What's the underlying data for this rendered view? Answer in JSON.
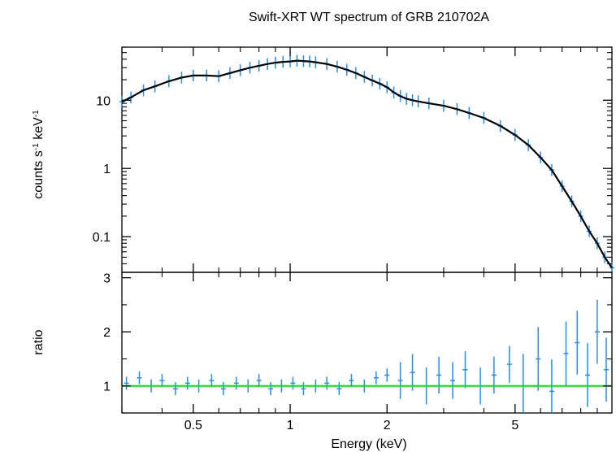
{
  "chart_data": [
    {
      "type": "line",
      "panel": "spectrum",
      "title": "Swift-XRT WT spectrum of GRB 210702A",
      "xlabel": "Energy (keV)",
      "ylabel_main": "counts s",
      "ylabel_sup1": "-1",
      "ylabel_mid": " keV",
      "ylabel_sup2": "-1",
      "x_scale": "log",
      "y_scale": "log",
      "xlim": [
        0.3,
        10
      ],
      "ylim": [
        0.03,
        60
      ],
      "yticks": [
        {
          "value": 10,
          "label": "10"
        },
        {
          "value": 1,
          "label": "1"
        },
        {
          "value": 0.1,
          "label": "0.1"
        }
      ],
      "series": [
        {
          "role": "data",
          "color": "#1e90ff",
          "x": [
            0.3,
            0.32,
            0.35,
            0.38,
            0.42,
            0.46,
            0.5,
            0.55,
            0.6,
            0.65,
            0.7,
            0.75,
            0.8,
            0.85,
            0.9,
            0.95,
            1.0,
            1.05,
            1.1,
            1.15,
            1.2,
            1.3,
            1.4,
            1.5,
            1.6,
            1.7,
            1.8,
            1.9,
            2.0,
            2.1,
            2.2,
            2.3,
            2.4,
            2.5,
            2.7,
            3.0,
            3.3,
            3.6,
            4.0,
            4.5,
            5.0,
            5.5,
            6.0,
            6.5,
            7.0,
            7.5,
            8.0,
            8.5,
            9.0,
            9.5,
            10.0
          ],
          "y": [
            9.5,
            11,
            14,
            16,
            19,
            21.5,
            23,
            23,
            22.5,
            25,
            27.5,
            30,
            32,
            34,
            35.5,
            36.5,
            37,
            38,
            37.5,
            37,
            36,
            34,
            31,
            28,
            25,
            22,
            19.5,
            17.5,
            15.5,
            13,
            11.5,
            10.5,
            10,
            9.6,
            9,
            8.3,
            7.4,
            6.5,
            5.5,
            4.2,
            3.1,
            2.2,
            1.45,
            0.95,
            0.55,
            0.33,
            0.2,
            0.12,
            0.08,
            0.05,
            0.035
          ]
        },
        {
          "role": "model",
          "color": "#000000",
          "x": [
            0.3,
            0.32,
            0.35,
            0.38,
            0.42,
            0.46,
            0.5,
            0.55,
            0.6,
            0.65,
            0.7,
            0.75,
            0.8,
            0.85,
            0.9,
            0.95,
            1.0,
            1.05,
            1.1,
            1.15,
            1.2,
            1.3,
            1.4,
            1.5,
            1.6,
            1.7,
            1.8,
            1.9,
            2.0,
            2.1,
            2.2,
            2.3,
            2.4,
            2.5,
            2.7,
            3.0,
            3.3,
            3.6,
            4.0,
            4.5,
            5.0,
            5.5,
            6.0,
            6.5,
            7.0,
            7.5,
            8.0,
            8.5,
            9.0,
            9.5,
            10.0
          ],
          "y": [
            9.5,
            11,
            14,
            16,
            19,
            21.5,
            23,
            23,
            22.5,
            25,
            27.5,
            30,
            32,
            34,
            35.5,
            36.5,
            37,
            38,
            37.5,
            37,
            36,
            34,
            31,
            28,
            25,
            22,
            19.5,
            17.5,
            15.5,
            13,
            11.5,
            10.5,
            10,
            9.6,
            9,
            8.3,
            7.4,
            6.5,
            5.5,
            4.2,
            3.1,
            2.2,
            1.45,
            0.95,
            0.55,
            0.33,
            0.2,
            0.12,
            0.08,
            0.05,
            0.035
          ]
        }
      ]
    },
    {
      "type": "scatter",
      "panel": "ratio",
      "xlabel": "Energy (keV)",
      "ylabel": "ratio",
      "x_scale": "log",
      "y_scale": "linear",
      "xlim": [
        0.3,
        10
      ],
      "ylim": [
        0.5,
        3.1
      ],
      "xticks": [
        {
          "value": 0.5,
          "label": "0.5"
        },
        {
          "value": 1,
          "label": "1"
        },
        {
          "value": 2,
          "label": "2"
        },
        {
          "value": 5,
          "label": "5"
        }
      ],
      "yticks": [
        {
          "value": 1,
          "label": "1"
        },
        {
          "value": 2,
          "label": "2"
        },
        {
          "value": 3,
          "label": "3"
        }
      ],
      "reference_line": {
        "y": 1,
        "color": "#00e600"
      },
      "series": [
        {
          "role": "ratio",
          "color": "#1e90ff",
          "x": [
            0.31,
            0.34,
            0.37,
            0.4,
            0.44,
            0.48,
            0.52,
            0.57,
            0.62,
            0.68,
            0.74,
            0.8,
            0.87,
            0.94,
            1.02,
            1.1,
            1.2,
            1.3,
            1.42,
            1.55,
            1.7,
            1.85,
            2.0,
            2.2,
            2.4,
            2.65,
            2.9,
            3.2,
            3.5,
            3.9,
            4.3,
            4.8,
            5.3,
            5.9,
            6.5,
            7.2,
            7.8,
            8.4,
            9.0,
            9.6
          ],
          "y": [
            1.05,
            1.15,
            1.0,
            1.1,
            0.95,
            1.05,
            1.0,
            1.1,
            0.95,
            1.05,
            1.0,
            1.1,
            0.95,
            1.0,
            1.05,
            0.95,
            1.0,
            1.05,
            0.95,
            1.1,
            1.0,
            1.15,
            1.2,
            1.1,
            1.25,
            1.0,
            1.2,
            1.1,
            1.3,
            1.0,
            1.2,
            1.4,
            1.0,
            1.5,
            0.9,
            1.6,
            1.8,
            1.2,
            2.0,
            1.3
          ]
        }
      ]
    }
  ]
}
